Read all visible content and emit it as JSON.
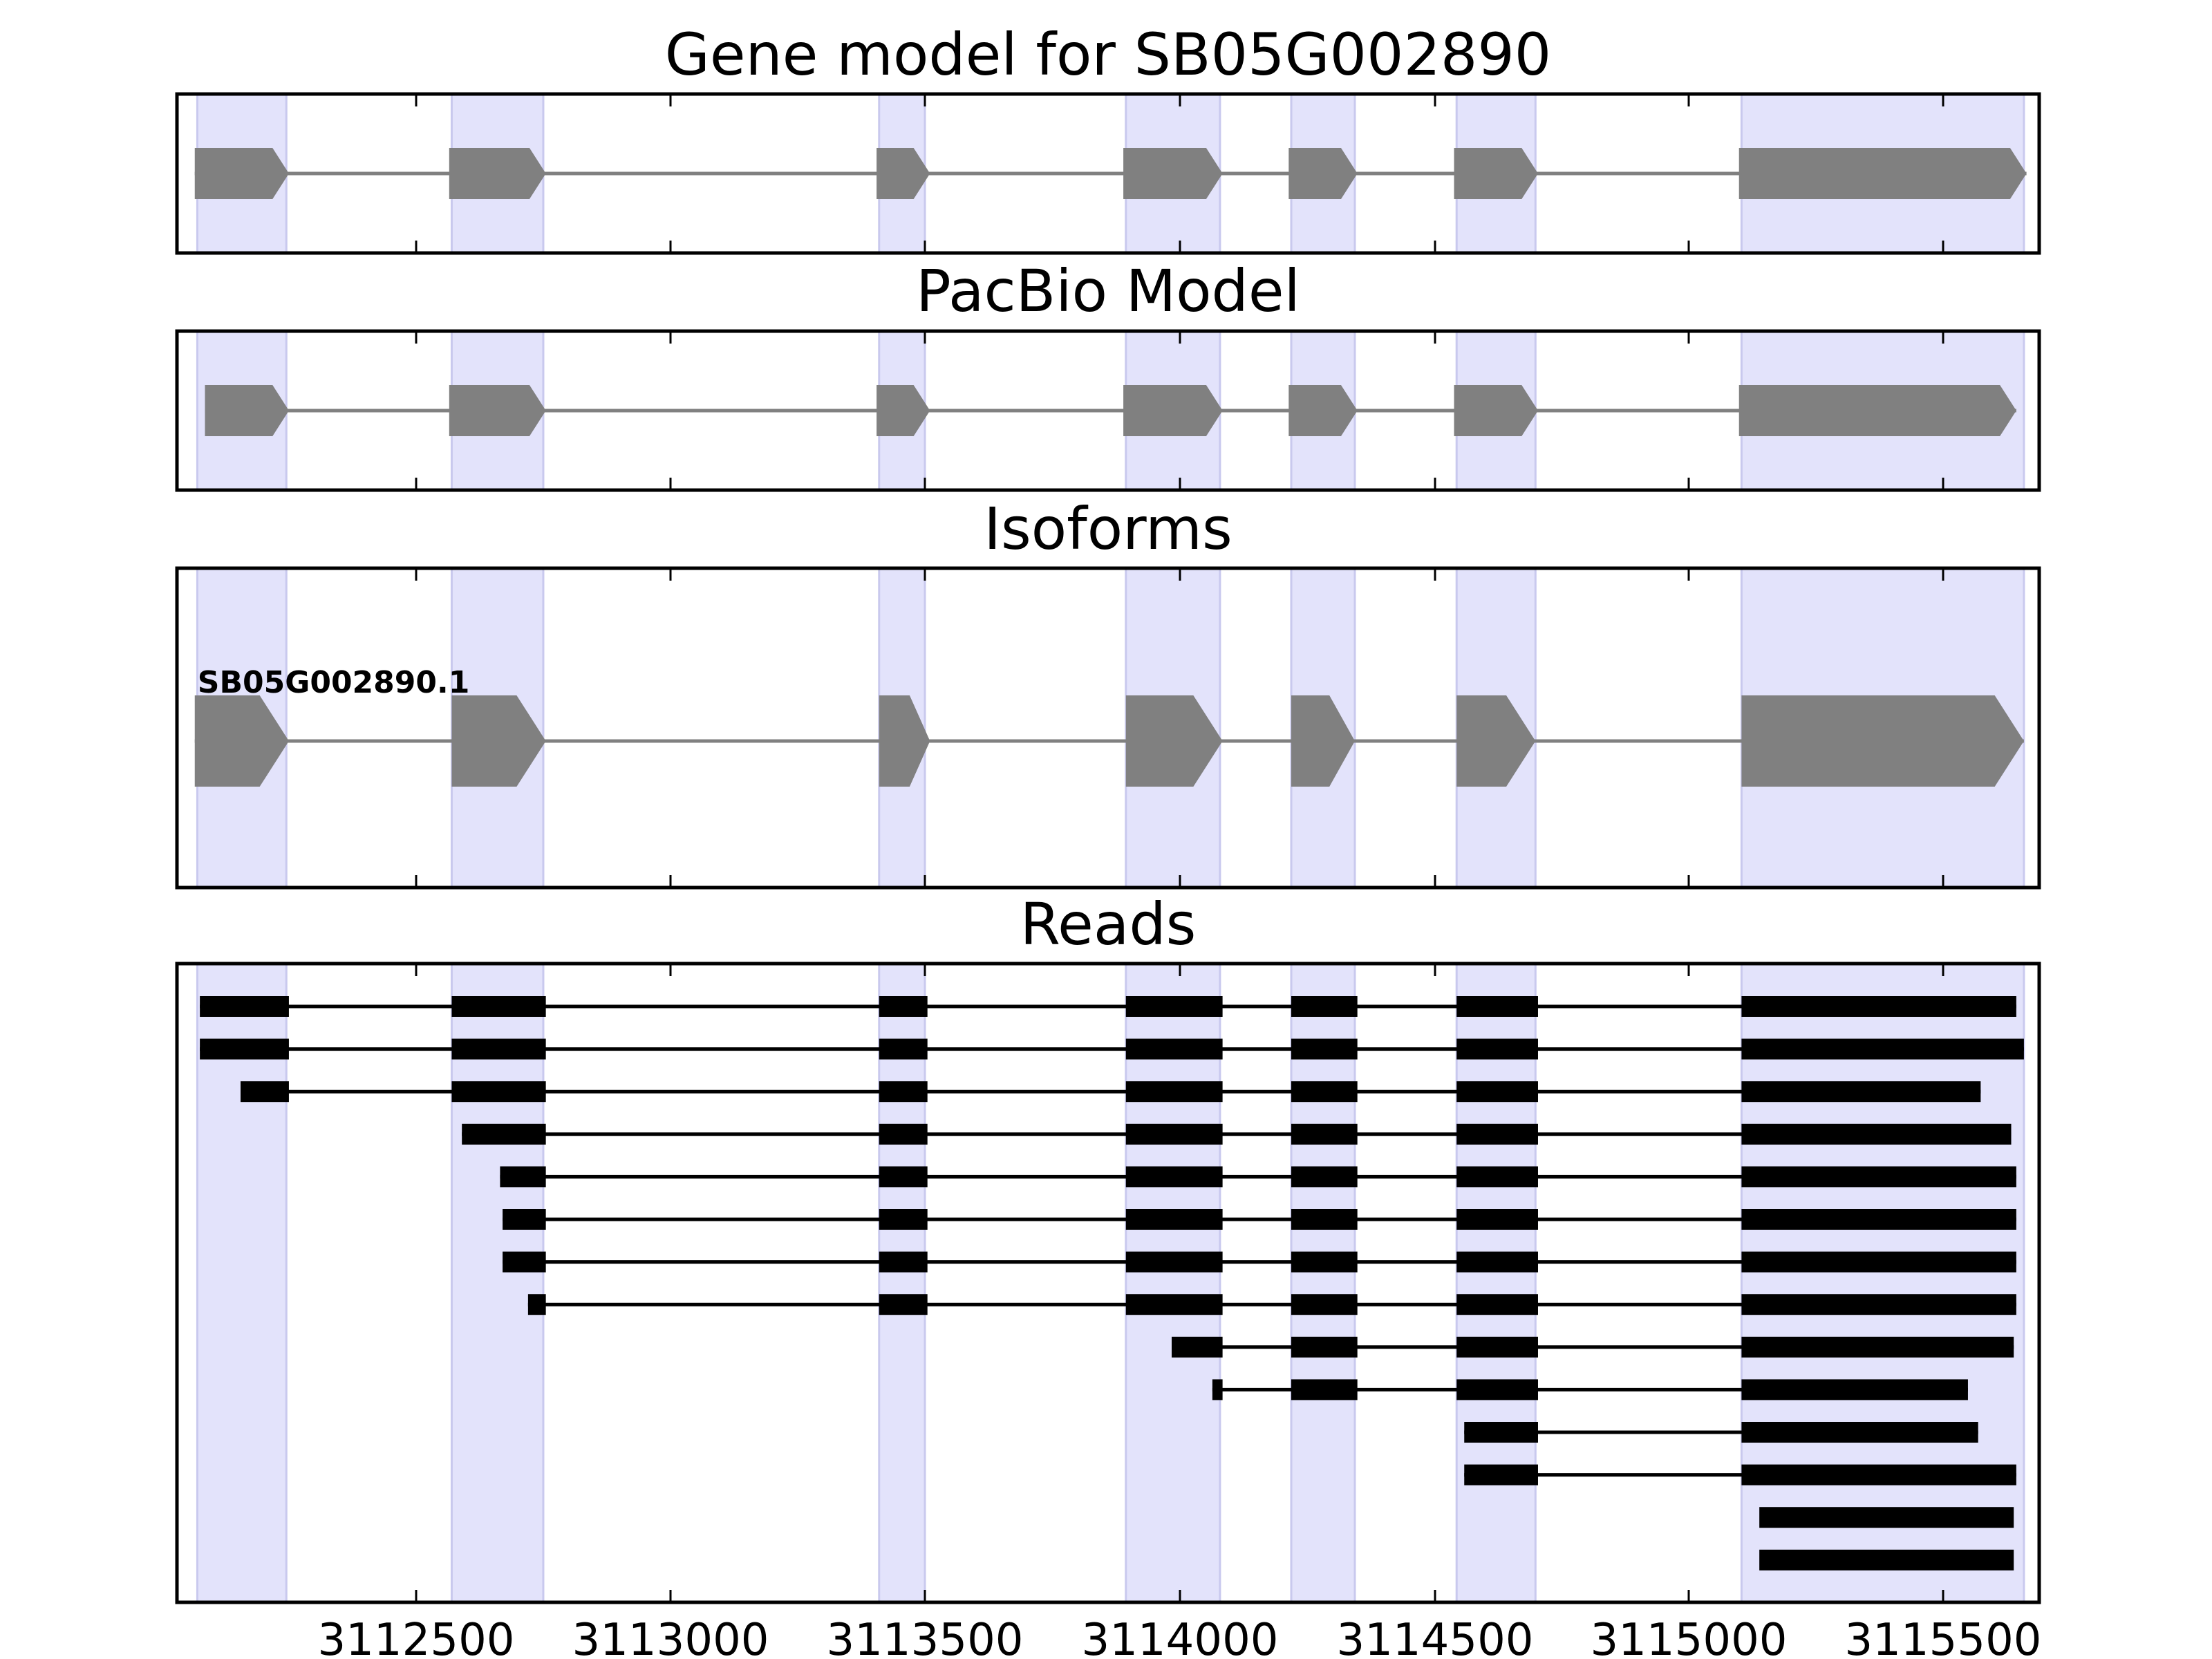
{
  "chart_data": {
    "type": "gene_model",
    "x_ticks": [
      3112500,
      3113000,
      3113500,
      3114000,
      3114500,
      3115000,
      3115500
    ],
    "x_tick_labels": [
      "3112500",
      "3113000",
      "3113500",
      "3114000",
      "3114500",
      "3115000",
      "3115500"
    ],
    "xlim": [
      3112030,
      3115690
    ],
    "strand": "+",
    "colors": {
      "exon_band": "#e3e3fb",
      "exon_band_edge": "#c9c9ee",
      "feature": "#808080",
      "read": "#000000"
    },
    "exon_bands": [
      [
        3112070,
        3112245
      ],
      [
        3112570,
        3112750
      ],
      [
        3113410,
        3113500
      ],
      [
        3113895,
        3114080
      ],
      [
        3114220,
        3114345
      ],
      [
        3114545,
        3114700
      ],
      [
        3115105,
        3115660
      ]
    ],
    "panels": [
      {
        "title": "Gene model for SB05G002890",
        "tracks": [
          {
            "label": "",
            "exons": [
              [
                3112065,
                3112250
              ],
              [
                3112565,
                3112755
              ],
              [
                3113405,
                3113510
              ],
              [
                3113890,
                3114085
              ],
              [
                3114215,
                3114350
              ],
              [
                3114540,
                3114705
              ],
              [
                3115100,
                3115665
              ]
            ]
          }
        ]
      },
      {
        "title": "PacBio Model",
        "tracks": [
          {
            "label": "",
            "exons": [
              [
                3112085,
                3112250
              ],
              [
                3112565,
                3112755
              ],
              [
                3113405,
                3113510
              ],
              [
                3113890,
                3114085
              ],
              [
                3114215,
                3114350
              ],
              [
                3114540,
                3114705
              ],
              [
                3115100,
                3115645
              ]
            ]
          }
        ]
      },
      {
        "title": "Isoforms",
        "tracks": [
          {
            "label": "SB05G002890.1",
            "exons": [
              [
                3112065,
                3112250
              ],
              [
                3112570,
                3112755
              ],
              [
                3113410,
                3113510
              ],
              [
                3113895,
                3114085
              ],
              [
                3114220,
                3114345
              ],
              [
                3114545,
                3114700
              ],
              [
                3115105,
                3115660
              ]
            ]
          }
        ]
      },
      {
        "title": "Reads",
        "tracks": [
          {
            "exons": [
              [
                3112075,
                3112250
              ],
              [
                3112570,
                3112755
              ],
              [
                3113410,
                3113505
              ],
              [
                3113895,
                3114085
              ],
              [
                3114220,
                3114350
              ],
              [
                3114545,
                3114705
              ],
              [
                3115105,
                3115645
              ]
            ]
          },
          {
            "exons": [
              [
                3112075,
                3112250
              ],
              [
                3112570,
                3112755
              ],
              [
                3113410,
                3113505
              ],
              [
                3113895,
                3114085
              ],
              [
                3114220,
                3114350
              ],
              [
                3114545,
                3114705
              ],
              [
                3115105,
                3115660
              ]
            ]
          },
          {
            "exons": [
              [
                3112155,
                3112250
              ],
              [
                3112570,
                3112755
              ],
              [
                3113410,
                3113505
              ],
              [
                3113895,
                3114085
              ],
              [
                3114220,
                3114350
              ],
              [
                3114545,
                3114705
              ],
              [
                3115105,
                3115575
              ]
            ]
          },
          {
            "exons": [
              [
                3112590,
                3112755
              ],
              [
                3113410,
                3113505
              ],
              [
                3113895,
                3114085
              ],
              [
                3114220,
                3114350
              ],
              [
                3114545,
                3114705
              ],
              [
                3115105,
                3115635
              ]
            ]
          },
          {
            "exons": [
              [
                3112665,
                3112755
              ],
              [
                3113410,
                3113505
              ],
              [
                3113895,
                3114085
              ],
              [
                3114220,
                3114350
              ],
              [
                3114545,
                3114705
              ],
              [
                3115105,
                3115645
              ]
            ]
          },
          {
            "exons": [
              [
                3112670,
                3112755
              ],
              [
                3113410,
                3113505
              ],
              [
                3113895,
                3114085
              ],
              [
                3114220,
                3114350
              ],
              [
                3114545,
                3114705
              ],
              [
                3115105,
                3115645
              ]
            ]
          },
          {
            "exons": [
              [
                3112670,
                3112755
              ],
              [
                3113410,
                3113505
              ],
              [
                3113895,
                3114085
              ],
              [
                3114220,
                3114350
              ],
              [
                3114545,
                3114705
              ],
              [
                3115105,
                3115645
              ]
            ]
          },
          {
            "exons": [
              [
                3112720,
                3112755
              ],
              [
                3113410,
                3113505
              ],
              [
                3113895,
                3114085
              ],
              [
                3114220,
                3114350
              ],
              [
                3114545,
                3114705
              ],
              [
                3115105,
                3115645
              ]
            ]
          },
          {
            "exons": [
              [
                3113985,
                3114085
              ],
              [
                3114220,
                3114350
              ],
              [
                3114545,
                3114705
              ],
              [
                3115105,
                3115640
              ]
            ]
          },
          {
            "exons": [
              [
                3114065,
                3114085
              ],
              [
                3114220,
                3114350
              ],
              [
                3114545,
                3114705
              ],
              [
                3115105,
                3115550
              ]
            ]
          },
          {
            "exons": [
              [
                3114560,
                3114705
              ],
              [
                3115105,
                3115570
              ]
            ]
          },
          {
            "exons": [
              [
                3114560,
                3114705
              ],
              [
                3115105,
                3115645
              ]
            ]
          },
          {
            "exons": [
              [
                3115140,
                3115640
              ]
            ]
          },
          {
            "exons": [
              [
                3115140,
                3115640
              ]
            ]
          }
        ]
      }
    ]
  }
}
